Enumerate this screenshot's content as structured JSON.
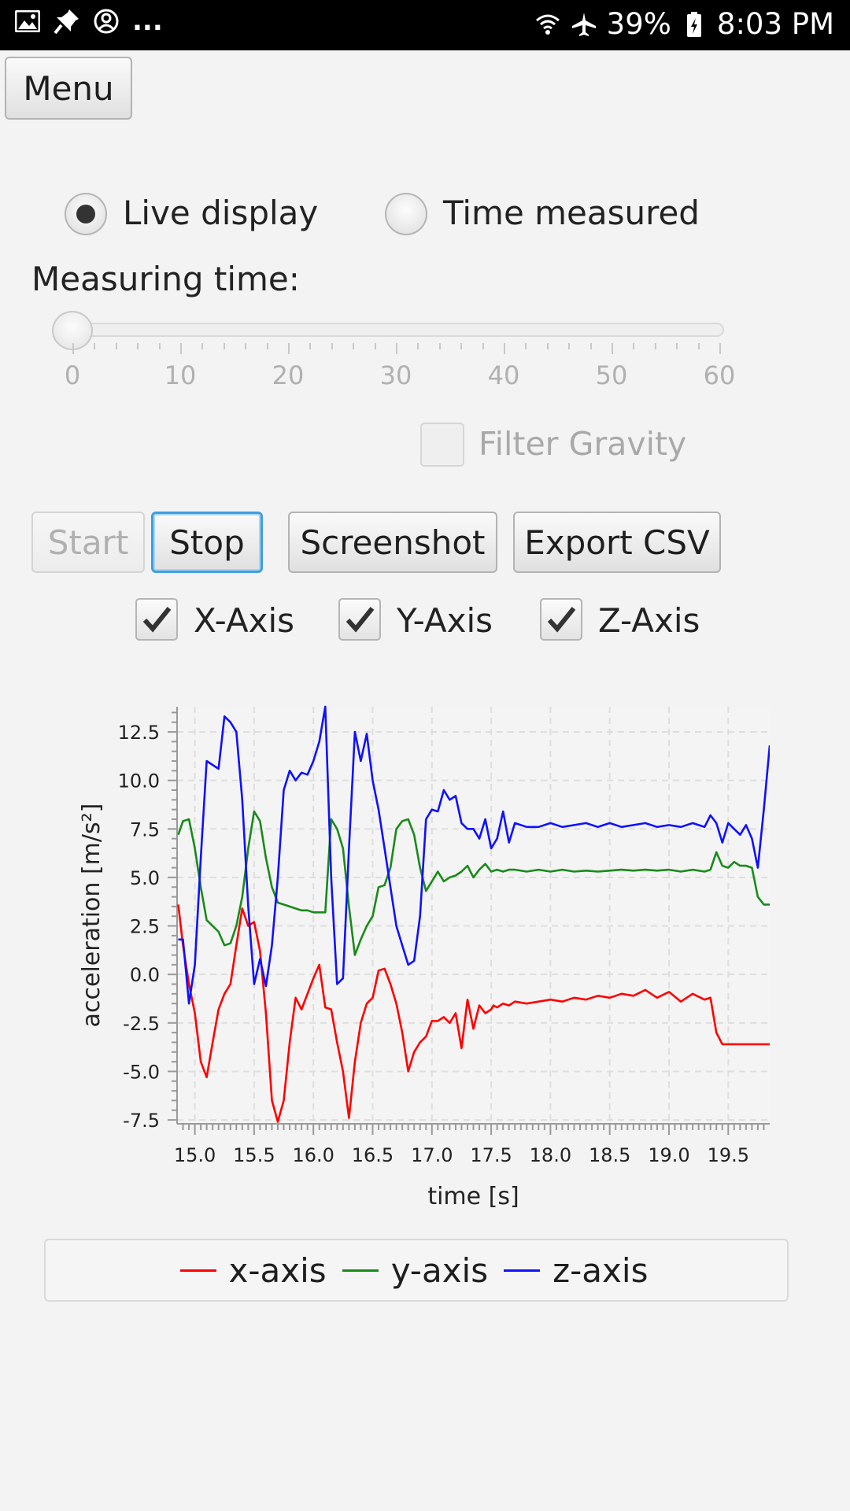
{
  "status_bar": {
    "battery": "39%",
    "time": "8:03 PM",
    "overflow": "...",
    "icons": [
      "gallery-icon",
      "pin-icon",
      "account-icon",
      "wifi-icon",
      "airplane-icon",
      "battery-icon"
    ]
  },
  "menu_button": "Menu",
  "mode": {
    "live_label": "Live display",
    "timed_label": "Time measured",
    "selected": "live"
  },
  "measuring": {
    "label": "Measuring time:",
    "value": 0,
    "min": 0,
    "max": 60,
    "tick_labels": [
      "0",
      "10",
      "20",
      "30",
      "40",
      "50",
      "60"
    ]
  },
  "filter_gravity": {
    "label": "Filter Gravity",
    "checked": false,
    "enabled": false
  },
  "buttons": {
    "start": "Start",
    "stop": "Stop",
    "screenshot": "Screenshot",
    "export": "Export CSV"
  },
  "axis_toggles": {
    "x": {
      "label": "X-Axis",
      "checked": true
    },
    "y": {
      "label": "Y-Axis",
      "checked": true
    },
    "z": {
      "label": "Z-Axis",
      "checked": true
    }
  },
  "colors": {
    "x": "#ff0000",
    "y": "#1a8a1a",
    "z": "#1010ff"
  },
  "chart_data": {
    "type": "line",
    "xlabel": "time [s]",
    "ylabel": "acceleration [m/s²]",
    "xlim": [
      14.85,
      19.85
    ],
    "ylim": [
      -7.7,
      13.8
    ],
    "xticks": [
      15.0,
      15.5,
      16.0,
      16.5,
      17.0,
      17.5,
      18.0,
      18.5,
      19.0,
      19.5
    ],
    "xtick_labels": [
      "15.0",
      "15.5",
      "16.0",
      "16.5",
      "17.0",
      "17.5",
      "18.0",
      "18.5",
      "19.0",
      "19.5"
    ],
    "yticks": [
      12.5,
      10.0,
      7.5,
      5.0,
      2.5,
      0.0,
      -2.5,
      -5.0,
      -7.5
    ],
    "ytick_labels": [
      "12.5",
      "10.0",
      "7.5",
      "5.0",
      "2.5",
      "0.0",
      "-2.5",
      "-5.0",
      "-7.5"
    ],
    "grid": true,
    "legend_position": "bottom",
    "series": [
      {
        "name": "x-axis",
        "color": "#ff0000",
        "x": [
          14.86,
          14.9,
          14.95,
          15.0,
          15.05,
          15.1,
          15.15,
          15.2,
          15.25,
          15.3,
          15.35,
          15.4,
          15.45,
          15.5,
          15.55,
          15.6,
          15.65,
          15.7,
          15.75,
          15.8,
          15.85,
          15.9,
          15.95,
          16.0,
          16.05,
          16.1,
          16.15,
          16.2,
          16.25,
          16.3,
          16.35,
          16.4,
          16.45,
          16.5,
          16.55,
          16.6,
          16.65,
          16.7,
          16.75,
          16.8,
          16.85,
          16.9,
          16.95,
          17.0,
          17.05,
          17.1,
          17.15,
          17.2,
          17.25,
          17.3,
          17.35,
          17.4,
          17.45,
          17.5,
          17.52,
          17.55,
          17.6,
          17.65,
          17.7,
          17.8,
          17.9,
          18.0,
          18.1,
          18.2,
          18.3,
          18.4,
          18.5,
          18.6,
          18.7,
          18.8,
          18.9,
          19.0,
          19.1,
          19.2,
          19.3,
          19.35,
          19.4,
          19.45,
          19.5,
          19.55,
          19.6,
          19.65,
          19.7,
          19.75,
          19.8,
          19.85
        ],
        "y": [
          3.6,
          1.5,
          -0.5,
          -2.0,
          -4.5,
          -5.3,
          -3.5,
          -1.8,
          -1.0,
          -0.5,
          1.5,
          3.4,
          2.5,
          2.7,
          1.2,
          -2.0,
          -6.5,
          -7.6,
          -6.5,
          -3.5,
          -1.2,
          -1.8,
          -1.0,
          -0.2,
          0.5,
          -1.7,
          -1.8,
          -3.5,
          -5.0,
          -7.4,
          -4.5,
          -2.5,
          -1.5,
          -1.2,
          0.2,
          0.3,
          -0.5,
          -1.5,
          -3.0,
          -5.0,
          -4.0,
          -3.5,
          -3.2,
          -2.4,
          -2.4,
          -2.2,
          -2.5,
          -2.0,
          -3.8,
          -1.3,
          -2.8,
          -1.6,
          -2.0,
          -1.8,
          -1.6,
          -1.7,
          -1.5,
          -1.6,
          -1.4,
          -1.5,
          -1.4,
          -1.3,
          -1.4,
          -1.2,
          -1.3,
          -1.1,
          -1.2,
          -1.0,
          -1.1,
          -0.8,
          -1.2,
          -0.9,
          -1.4,
          -1.0,
          -1.3,
          -1.2,
          -3.0,
          -3.6,
          -3.6,
          -3.6,
          -3.6,
          -3.6,
          -3.6,
          -3.6,
          -3.6,
          -3.6
        ]
      },
      {
        "name": "y-axis",
        "color": "#1a8a1a",
        "x": [
          14.86,
          14.9,
          14.95,
          15.0,
          15.05,
          15.1,
          15.15,
          15.2,
          15.25,
          15.3,
          15.35,
          15.4,
          15.45,
          15.5,
          15.55,
          15.6,
          15.65,
          15.7,
          15.75,
          15.8,
          15.85,
          15.9,
          15.95,
          16.0,
          16.05,
          16.1,
          16.15,
          16.2,
          16.25,
          16.3,
          16.35,
          16.4,
          16.45,
          16.5,
          16.55,
          16.6,
          16.65,
          16.7,
          16.75,
          16.8,
          16.85,
          16.9,
          16.95,
          17.0,
          17.05,
          17.1,
          17.15,
          17.2,
          17.25,
          17.3,
          17.35,
          17.4,
          17.45,
          17.5,
          17.55,
          17.6,
          17.65,
          17.7,
          17.8,
          17.9,
          18.0,
          18.1,
          18.2,
          18.3,
          18.4,
          18.5,
          18.6,
          18.7,
          18.8,
          18.9,
          19.0,
          19.1,
          19.2,
          19.3,
          19.35,
          19.4,
          19.45,
          19.5,
          19.55,
          19.6,
          19.65,
          19.7,
          19.75,
          19.8,
          19.85
        ],
        "y": [
          7.2,
          7.9,
          8.0,
          6.5,
          4.5,
          2.8,
          2.5,
          2.2,
          1.5,
          1.6,
          2.5,
          4.0,
          6.5,
          8.4,
          7.9,
          6.0,
          4.5,
          3.7,
          3.6,
          3.5,
          3.4,
          3.3,
          3.3,
          3.2,
          3.2,
          3.2,
          8.0,
          7.5,
          6.5,
          3.5,
          1.0,
          1.8,
          2.5,
          3.0,
          4.5,
          4.6,
          5.5,
          7.5,
          7.9,
          8.0,
          7.2,
          5.5,
          4.3,
          4.8,
          5.3,
          4.8,
          5.0,
          5.1,
          5.3,
          5.6,
          5.0,
          5.4,
          5.7,
          5.3,
          5.4,
          5.3,
          5.4,
          5.4,
          5.3,
          5.4,
          5.3,
          5.4,
          5.3,
          5.35,
          5.3,
          5.35,
          5.4,
          5.35,
          5.4,
          5.35,
          5.4,
          5.3,
          5.4,
          5.3,
          5.4,
          6.3,
          5.6,
          5.5,
          5.8,
          5.6,
          5.6,
          5.5,
          4.0,
          3.6,
          3.6
        ]
      },
      {
        "name": "z-axis",
        "color": "#1010ff",
        "x": [
          14.86,
          14.9,
          14.95,
          15.0,
          15.05,
          15.1,
          15.15,
          15.2,
          15.25,
          15.3,
          15.35,
          15.4,
          15.45,
          15.5,
          15.55,
          15.6,
          15.65,
          15.7,
          15.75,
          15.8,
          15.85,
          15.9,
          15.95,
          16.0,
          16.05,
          16.1,
          16.15,
          16.2,
          16.25,
          16.3,
          16.35,
          16.4,
          16.45,
          16.5,
          16.55,
          16.6,
          16.65,
          16.7,
          16.75,
          16.8,
          16.85,
          16.9,
          16.95,
          17.0,
          17.05,
          17.1,
          17.15,
          17.2,
          17.25,
          17.3,
          17.35,
          17.4,
          17.45,
          17.5,
          17.55,
          17.6,
          17.65,
          17.7,
          17.8,
          17.9,
          18.0,
          18.1,
          18.2,
          18.3,
          18.4,
          18.5,
          18.6,
          18.7,
          18.8,
          18.9,
          19.0,
          19.1,
          19.2,
          19.3,
          19.35,
          19.4,
          19.45,
          19.5,
          19.55,
          19.6,
          19.65,
          19.7,
          19.75,
          19.8,
          19.85
        ],
        "y": [
          1.8,
          1.8,
          -1.5,
          0.5,
          6.0,
          11.0,
          10.8,
          10.6,
          13.3,
          13.0,
          12.5,
          9.0,
          3.5,
          -0.5,
          0.8,
          -0.6,
          1.5,
          5.0,
          9.5,
          10.5,
          10.0,
          10.4,
          10.3,
          11.0,
          12.0,
          13.8,
          5.0,
          -0.5,
          -0.2,
          6.5,
          12.5,
          11.0,
          12.4,
          10.0,
          8.5,
          6.5,
          4.5,
          2.5,
          1.5,
          0.5,
          0.7,
          3.0,
          8.0,
          8.5,
          8.4,
          9.5,
          9.0,
          9.2,
          7.8,
          7.5,
          7.5,
          7.0,
          8.0,
          6.5,
          7.0,
          8.4,
          6.8,
          7.8,
          7.6,
          7.6,
          7.8,
          7.6,
          7.7,
          7.8,
          7.6,
          7.8,
          7.6,
          7.7,
          7.8,
          7.6,
          7.7,
          7.6,
          7.8,
          7.6,
          8.2,
          7.8,
          6.8,
          7.8,
          7.5,
          7.2,
          7.7,
          7.0,
          5.5,
          8.5,
          11.8
        ]
      }
    ]
  }
}
